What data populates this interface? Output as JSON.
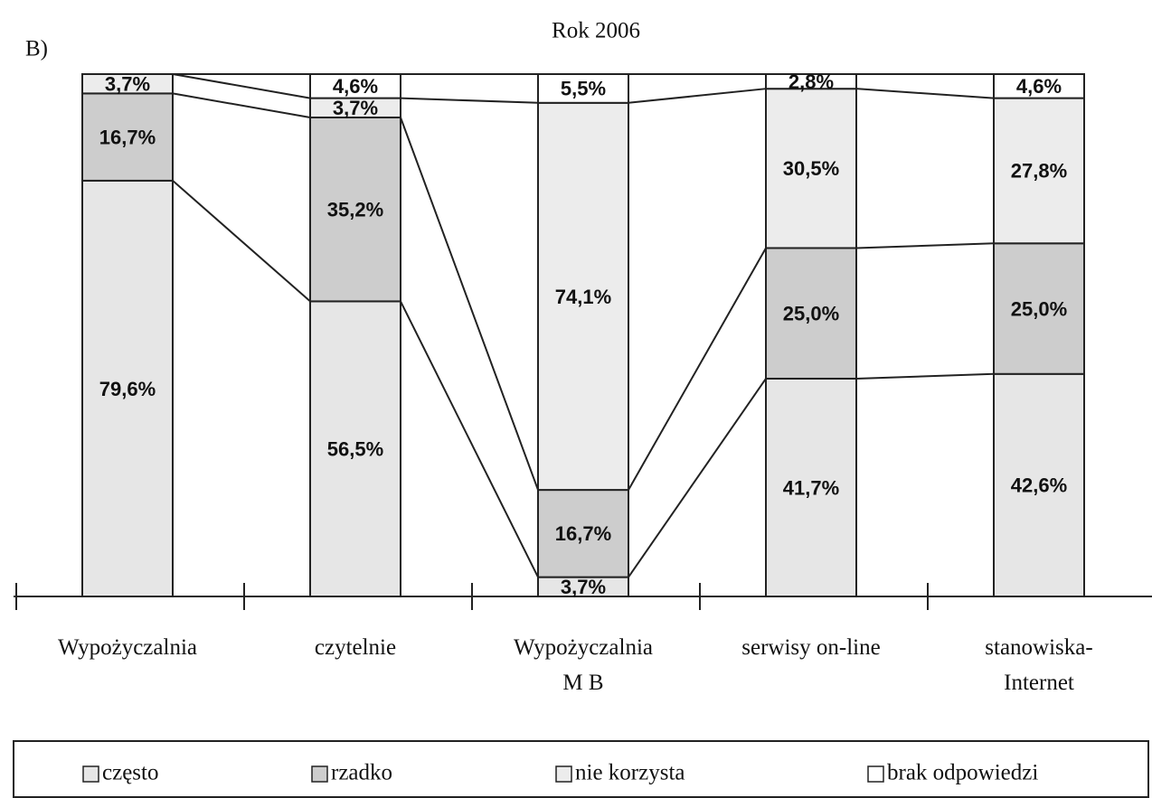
{
  "chart_data": {
    "type": "stacked_bar_100",
    "title": "Rok 2006",
    "panel_label": "B)",
    "categories": [
      "Wypożyczalnia",
      "czytelnie",
      "Wypożyczalnia\nM B",
      "serwisy on-line",
      "stanowiska-\nInternet"
    ],
    "ylim": [
      0,
      100
    ],
    "series": [
      {
        "name": "często",
        "color": "#e6e6e6",
        "values": [
          79.6,
          56.5,
          3.7,
          41.7,
          42.6
        ],
        "value_labels": [
          "79,6%",
          "56,5%",
          "3,7%",
          "41,7%",
          "42,6%"
        ]
      },
      {
        "name": "rzadko",
        "color": "#cdcdcd",
        "values": [
          16.7,
          35.2,
          16.7,
          25.0,
          25.0
        ],
        "value_labels": [
          "16,7%",
          "35,2%",
          "16,7%",
          "25,0%",
          "25,0%"
        ]
      },
      {
        "name": "nie korzysta",
        "color": "#ececec",
        "values": [
          3.7,
          3.7,
          74.1,
          30.5,
          27.8
        ],
        "value_labels": [
          "3,7%",
          "3,7%",
          "74,1%",
          "30,5%",
          "27,8%"
        ]
      },
      {
        "name": "brak odpowiedzi",
        "color": "#ffffff",
        "values": [
          0,
          4.6,
          5.5,
          2.8,
          4.6
        ],
        "value_labels": [
          null,
          "4,6%",
          "5,5%",
          "2,8%",
          "4,6%"
        ]
      }
    ]
  }
}
